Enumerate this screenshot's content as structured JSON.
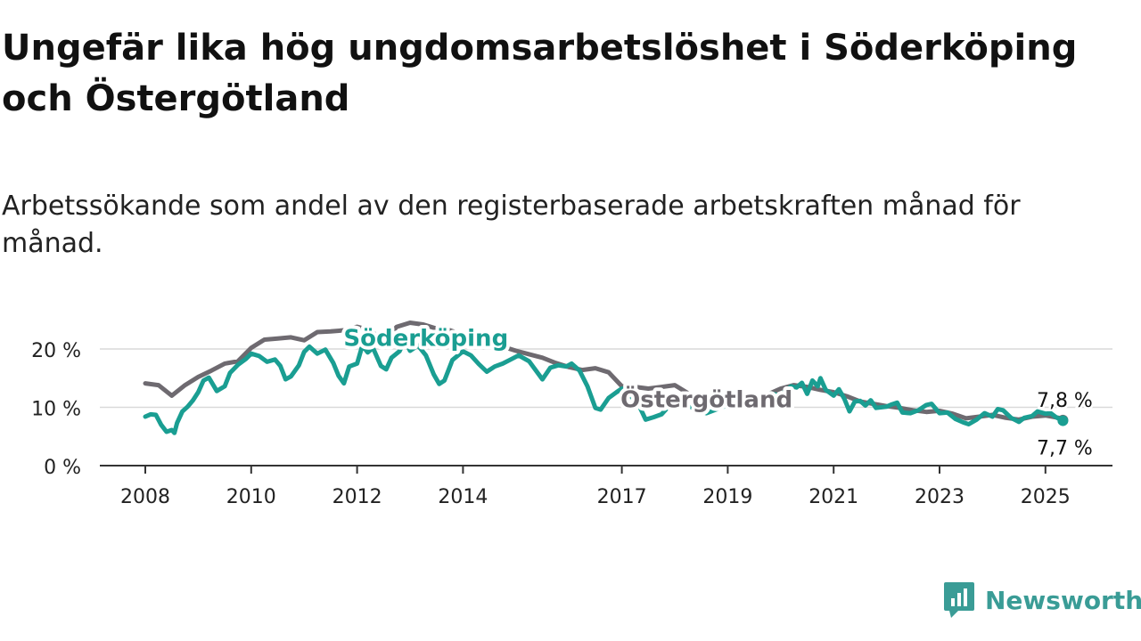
{
  "title": "Ungefär lika hög ungdomsarbetslöshet i Söderköping och Östergötland",
  "subtitle": "Arbetssökande som andel av den registerbaserade arbetskraften månad för månad.",
  "brand": {
    "name": "Newsworthy",
    "icon": "newsworthy-logo-icon",
    "color": "#3a9c96"
  },
  "chart_data": {
    "type": "line",
    "title": "",
    "xlabel": "",
    "ylabel": "",
    "ylim": [
      0,
      20
    ],
    "y_ticks": [
      0,
      10,
      20
    ],
    "y_tick_labels": [
      "0 %",
      "10 %",
      "20 %"
    ],
    "x_ticks": [
      2008,
      2010,
      2012,
      2014,
      2017,
      2019,
      2021,
      2023,
      2025
    ],
    "x_tick_labels": [
      "2008",
      "2010",
      "2012",
      "2014",
      "2017",
      "2019",
      "2021",
      "2023",
      "2025"
    ],
    "grid": true,
    "legend": "inline labels",
    "series": [
      {
        "name": "Östergötland",
        "color": "#6e6a70",
        "end_label": "7,8 %",
        "points": [
          [
            2008.0,
            14.1
          ],
          [
            2008.25,
            13.8
          ],
          [
            2008.5,
            12.0
          ],
          [
            2008.75,
            13.8
          ],
          [
            2009.0,
            15.2
          ],
          [
            2009.25,
            16.3
          ],
          [
            2009.5,
            17.5
          ],
          [
            2009.75,
            17.9
          ],
          [
            2010.0,
            20.2
          ],
          [
            2010.25,
            21.6
          ],
          [
            2010.5,
            21.8
          ],
          [
            2010.75,
            22.0
          ],
          [
            2011.0,
            21.5
          ],
          [
            2011.25,
            22.9
          ],
          [
            2011.5,
            23.0
          ],
          [
            2011.75,
            23.2
          ],
          [
            2012.0,
            23.8
          ],
          [
            2012.25,
            23.2
          ],
          [
            2012.5,
            21.3
          ],
          [
            2012.75,
            23.8
          ],
          [
            2013.0,
            24.5
          ],
          [
            2013.25,
            24.2
          ],
          [
            2013.5,
            23.5
          ],
          [
            2013.75,
            23.2
          ],
          [
            2014.0,
            22.4
          ],
          [
            2014.25,
            21.6
          ],
          [
            2014.5,
            21.2
          ],
          [
            2014.75,
            20.4
          ],
          [
            2015.0,
            19.7
          ],
          [
            2015.25,
            19.1
          ],
          [
            2015.5,
            18.5
          ],
          [
            2015.75,
            17.6
          ],
          [
            2016.0,
            16.9
          ],
          [
            2016.25,
            16.4
          ],
          [
            2016.5,
            16.7
          ],
          [
            2016.75,
            16.0
          ],
          [
            2017.0,
            13.6
          ],
          [
            2017.25,
            13.5
          ],
          [
            2017.5,
            13.2
          ],
          [
            2017.75,
            13.5
          ],
          [
            2018.0,
            13.8
          ],
          [
            2018.25,
            12.4
          ],
          [
            2018.5,
            12.0
          ],
          [
            2018.75,
            12.1
          ],
          [
            2019.0,
            12.0
          ],
          [
            2019.25,
            11.6
          ],
          [
            2019.5,
            11.8
          ],
          [
            2019.75,
            12.2
          ],
          [
            2020.0,
            13.2
          ],
          [
            2020.25,
            13.8
          ],
          [
            2020.5,
            13.5
          ],
          [
            2020.75,
            13.0
          ],
          [
            2021.0,
            12.6
          ],
          [
            2021.25,
            11.9
          ],
          [
            2021.5,
            11.0
          ],
          [
            2021.75,
            10.6
          ],
          [
            2022.0,
            10.2
          ],
          [
            2022.25,
            9.9
          ],
          [
            2022.5,
            9.5
          ],
          [
            2022.75,
            9.2
          ],
          [
            2023.0,
            9.4
          ],
          [
            2023.25,
            8.9
          ],
          [
            2023.5,
            8.1
          ],
          [
            2023.75,
            8.4
          ],
          [
            2024.0,
            8.7
          ],
          [
            2024.25,
            8.2
          ],
          [
            2024.5,
            7.9
          ],
          [
            2024.75,
            8.4
          ],
          [
            2025.0,
            8.6
          ],
          [
            2025.25,
            8.2
          ],
          [
            2025.33,
            7.8
          ]
        ]
      },
      {
        "name": "Söderköping",
        "color": "#1a9e92",
        "end_label": "7,7 %",
        "points": [
          [
            2008.0,
            8.4
          ],
          [
            2008.1,
            8.8
          ],
          [
            2008.2,
            8.7
          ],
          [
            2008.3,
            7.0
          ],
          [
            2008.4,
            5.8
          ],
          [
            2008.5,
            6.1
          ],
          [
            2008.55,
            5.6
          ],
          [
            2008.6,
            7.3
          ],
          [
            2008.7,
            9.3
          ],
          [
            2008.8,
            10.1
          ],
          [
            2008.9,
            11.2
          ],
          [
            2009.0,
            12.6
          ],
          [
            2009.1,
            14.6
          ],
          [
            2009.2,
            15.1
          ],
          [
            2009.35,
            12.8
          ],
          [
            2009.5,
            13.6
          ],
          [
            2009.6,
            15.9
          ],
          [
            2009.75,
            17.3
          ],
          [
            2009.9,
            18.3
          ],
          [
            2010.0,
            19.2
          ],
          [
            2010.15,
            18.8
          ],
          [
            2010.3,
            17.8
          ],
          [
            2010.45,
            18.2
          ],
          [
            2010.55,
            17.1
          ],
          [
            2010.65,
            14.8
          ],
          [
            2010.75,
            15.3
          ],
          [
            2010.9,
            17.2
          ],
          [
            2011.0,
            19.5
          ],
          [
            2011.1,
            20.4
          ],
          [
            2011.25,
            19.2
          ],
          [
            2011.4,
            19.9
          ],
          [
            2011.55,
            17.6
          ],
          [
            2011.65,
            15.4
          ],
          [
            2011.75,
            14.1
          ],
          [
            2011.85,
            17.0
          ],
          [
            2012.0,
            17.5
          ],
          [
            2012.1,
            20.6
          ],
          [
            2012.2,
            19.4
          ],
          [
            2012.3,
            20.2
          ],
          [
            2012.45,
            17.1
          ],
          [
            2012.55,
            16.5
          ],
          [
            2012.65,
            18.5
          ],
          [
            2012.8,
            19.6
          ],
          [
            2012.9,
            21.5
          ],
          [
            2013.0,
            19.7
          ],
          [
            2013.15,
            20.6
          ],
          [
            2013.3,
            18.9
          ],
          [
            2013.45,
            15.6
          ],
          [
            2013.55,
            14.0
          ],
          [
            2013.65,
            14.6
          ],
          [
            2013.8,
            18.1
          ],
          [
            2014.0,
            19.6
          ],
          [
            2014.15,
            18.9
          ],
          [
            2014.3,
            17.4
          ],
          [
            2014.45,
            16.1
          ],
          [
            2014.6,
            17.0
          ],
          [
            2014.75,
            17.5
          ],
          [
            2014.9,
            18.2
          ],
          [
            2015.05,
            18.9
          ],
          [
            2015.25,
            17.9
          ],
          [
            2015.5,
            14.8
          ],
          [
            2015.65,
            16.8
          ],
          [
            2015.8,
            17.2
          ],
          [
            2015.95,
            17.0
          ],
          [
            2016.05,
            17.5
          ],
          [
            2016.2,
            16.3
          ],
          [
            2016.35,
            13.6
          ],
          [
            2016.5,
            9.9
          ],
          [
            2016.6,
            9.6
          ],
          [
            2016.75,
            11.6
          ],
          [
            2016.9,
            12.6
          ],
          [
            2017.0,
            13.2
          ],
          [
            2017.1,
            12.8
          ],
          [
            2017.2,
            11.6
          ],
          [
            2017.3,
            10.8
          ],
          [
            2017.45,
            7.9
          ],
          [
            2017.6,
            8.3
          ],
          [
            2017.75,
            8.8
          ],
          [
            2017.9,
            10.3
          ],
          [
            2018.0,
            11.0
          ],
          [
            2018.2,
            10.6
          ],
          [
            2018.4,
            9.6
          ],
          [
            2018.6,
            9.0
          ],
          [
            2018.8,
            9.7
          ],
          [
            2019.0,
            10.4
          ],
          [
            2019.2,
            11.1
          ],
          [
            2019.4,
            11.6
          ],
          [
            2019.6,
            11.4
          ],
          [
            2019.8,
            12.4
          ],
          [
            2020.0,
            12.0
          ],
          [
            2020.1,
            12.9
          ],
          [
            2020.2,
            13.6
          ],
          [
            2020.3,
            13.4
          ],
          [
            2020.4,
            14.2
          ],
          [
            2020.5,
            12.3
          ],
          [
            2020.6,
            14.6
          ],
          [
            2020.7,
            13.6
          ],
          [
            2020.75,
            15.0
          ],
          [
            2020.85,
            13.0
          ],
          [
            2021.0,
            12.0
          ],
          [
            2021.1,
            13.1
          ],
          [
            2021.2,
            11.5
          ],
          [
            2021.3,
            9.3
          ],
          [
            2021.4,
            11.0
          ],
          [
            2021.5,
            11.1
          ],
          [
            2021.6,
            10.3
          ],
          [
            2021.7,
            11.2
          ],
          [
            2021.8,
            9.9
          ],
          [
            2022.0,
            10.1
          ],
          [
            2022.1,
            10.5
          ],
          [
            2022.2,
            10.8
          ],
          [
            2022.3,
            9.1
          ],
          [
            2022.45,
            9.0
          ],
          [
            2022.6,
            9.5
          ],
          [
            2022.75,
            10.4
          ],
          [
            2022.85,
            10.6
          ],
          [
            2023.0,
            9.0
          ],
          [
            2023.15,
            9.1
          ],
          [
            2023.3,
            8.0
          ],
          [
            2023.45,
            7.4
          ],
          [
            2023.55,
            7.1
          ],
          [
            2023.7,
            7.9
          ],
          [
            2023.85,
            9.0
          ],
          [
            2024.0,
            8.4
          ],
          [
            2024.1,
            9.7
          ],
          [
            2024.2,
            9.5
          ],
          [
            2024.35,
            8.2
          ],
          [
            2024.5,
            7.5
          ],
          [
            2024.6,
            8.2
          ],
          [
            2024.75,
            8.5
          ],
          [
            2024.85,
            9.3
          ],
          [
            2025.0,
            8.9
          ],
          [
            2025.1,
            9.0
          ],
          [
            2025.2,
            8.3
          ],
          [
            2025.33,
            7.7
          ]
        ]
      }
    ],
    "inline_labels": [
      {
        "series": "Söderköping",
        "text": "Söderköping",
        "at": [
          2013.3,
          20.5
        ]
      },
      {
        "series": "Östergötland",
        "text": "Östergötland",
        "at": [
          2018.6,
          10.0
        ]
      }
    ]
  }
}
